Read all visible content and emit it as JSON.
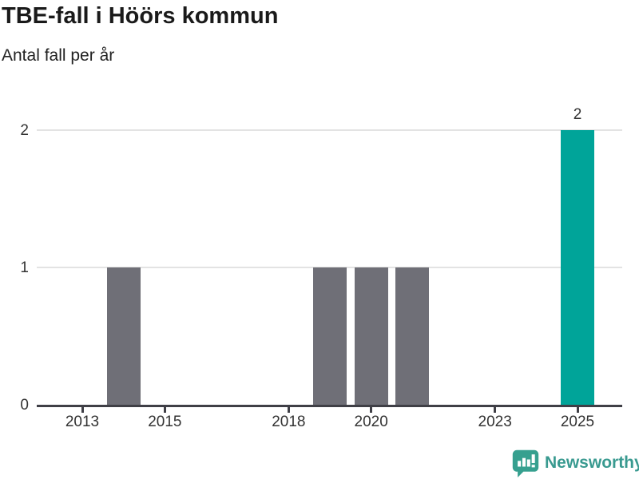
{
  "header": {
    "title": "TBE-fall i Höörs kommun",
    "subtitle": "Antal fall per år"
  },
  "chart_data": {
    "type": "bar",
    "title": "TBE-fall i Höörs kommun",
    "subtitle": "Antal fall per år",
    "categories": [
      2012,
      2013,
      2014,
      2015,
      2016,
      2017,
      2018,
      2019,
      2020,
      2021,
      2022,
      2023,
      2024,
      2025
    ],
    "values": [
      0,
      0,
      1,
      0,
      0,
      0,
      0,
      1,
      1,
      1,
      0,
      0,
      0,
      2
    ],
    "highlight_category": 2025,
    "bar_value_labels": [
      {
        "category": 2025,
        "label": "2"
      }
    ],
    "xticks": [
      2013,
      2015,
      2018,
      2020,
      2023,
      2025
    ],
    "yticks": [
      0,
      1,
      2
    ],
    "ylim": [
      0,
      2
    ],
    "xlabel": "",
    "ylabel": "",
    "grid": "horizontal",
    "legend": "none",
    "colors": {
      "bar_default": "#6F6F77",
      "bar_highlight": "#00A499",
      "gridline": "#E3E3E3",
      "axis": "#3F3F46",
      "tick_label": "#333333"
    }
  },
  "footer": {
    "brand": "Newsworthy",
    "brand_color": "#399A90",
    "logo_color": "#36A08F",
    "logo_icon": "newsworthy-speech-bubble-chart"
  }
}
